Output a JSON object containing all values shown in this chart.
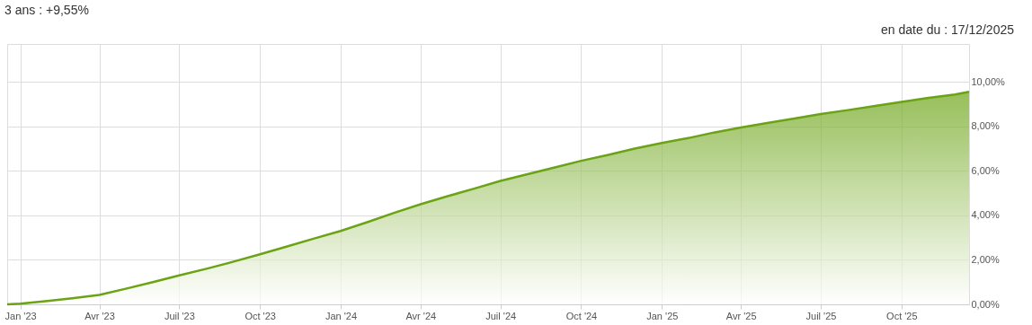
{
  "chart_data": {
    "type": "area",
    "title": "3 ans : +9,55%",
    "annotations": [
      "en date du : 17/12/2025"
    ],
    "x": [
      "2022-12-17",
      "2023-01-01",
      "2023-02-01",
      "2023-03-01",
      "2023-04-01",
      "2023-05-01",
      "2023-06-01",
      "2023-07-01",
      "2023-08-01",
      "2023-09-01",
      "2023-10-01",
      "2023-11-01",
      "2023-12-01",
      "2024-01-01",
      "2024-02-01",
      "2024-03-01",
      "2024-04-01",
      "2024-05-01",
      "2024-06-01",
      "2024-07-01",
      "2024-08-01",
      "2024-09-01",
      "2024-10-01",
      "2024-11-01",
      "2024-12-01",
      "2025-01-01",
      "2025-02-01",
      "2025-03-01",
      "2025-04-01",
      "2025-05-01",
      "2025-06-01",
      "2025-07-01",
      "2025-08-01",
      "2025-09-01",
      "2025-10-01",
      "2025-11-01",
      "2025-12-01",
      "2025-12-17"
    ],
    "series": [
      {
        "color": "#6aa313",
        "values": [
          0,
          0.03,
          0.15,
          0.27,
          0.42,
          0.7,
          1.0,
          1.3,
          1.6,
          1.92,
          2.25,
          2.6,
          2.95,
          3.3,
          3.7,
          4.1,
          4.5,
          4.85,
          5.2,
          5.55,
          5.85,
          6.15,
          6.45,
          6.72,
          7.0,
          7.25,
          7.48,
          7.72,
          7.95,
          8.15,
          8.35,
          8.55,
          8.73,
          8.92,
          9.1,
          9.28,
          9.43,
          9.55
        ]
      }
    ],
    "xlim": [
      "2022-12-17",
      "2025-12-17"
    ],
    "xticks": [
      {
        "value": "2023-01-01",
        "label": "Jan '23"
      },
      {
        "value": "2023-04-01",
        "label": "Avr '23"
      },
      {
        "value": "2023-07-01",
        "label": "Juil '23"
      },
      {
        "value": "2023-10-01",
        "label": "Oct '23"
      },
      {
        "value": "2024-01-01",
        "label": "Jan '24"
      },
      {
        "value": "2024-04-01",
        "label": "Avr '24"
      },
      {
        "value": "2024-07-01",
        "label": "Juil '24"
      },
      {
        "value": "2024-10-01",
        "label": "Oct '24"
      },
      {
        "value": "2025-01-01",
        "label": "Jan '25"
      },
      {
        "value": "2025-04-01",
        "label": "Avr '25"
      },
      {
        "value": "2025-07-01",
        "label": "Juil '25"
      },
      {
        "value": "2025-10-01",
        "label": "Oct '25"
      }
    ],
    "ylim": [
      0,
      11.7
    ],
    "yticks": [
      {
        "value": 0,
        "label": "0,00%"
      },
      {
        "value": 2,
        "label": "2,00%"
      },
      {
        "value": 4,
        "label": "4,00%"
      },
      {
        "value": 6,
        "label": "6,00%"
      },
      {
        "value": 8,
        "label": "8,00%"
      },
      {
        "value": 10,
        "label": "10,00%"
      }
    ],
    "grid": true
  }
}
